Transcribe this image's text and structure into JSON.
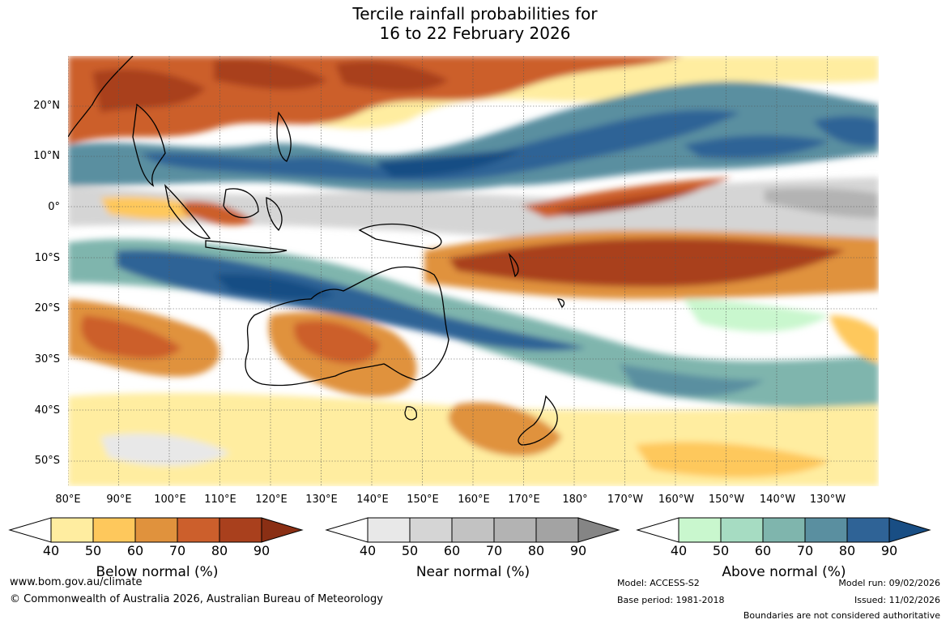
{
  "title": {
    "line1": "Tercile rainfall probabilities for",
    "line2": "16 to 22 February 2026"
  },
  "map": {
    "lat_labels": [
      "20°N",
      "10°N",
      "0°",
      "10°S",
      "20°S",
      "30°S",
      "40°S",
      "50°S"
    ],
    "lon_labels": [
      "80°E",
      "90°E",
      "100°E",
      "110°E",
      "120°E",
      "130°E",
      "140°E",
      "150°E",
      "160°E",
      "170°E",
      "180°",
      "170°W",
      "160°W",
      "150°W",
      "140°W",
      "130°W"
    ],
    "grid": true
  },
  "colorbars": [
    {
      "name": "Below normal (%)",
      "ticks": [
        "40",
        "50",
        "60",
        "70",
        "80",
        "90"
      ],
      "colors": [
        "#ffeda0",
        "#fec85c",
        "#e0923d",
        "#cc5f2c",
        "#a9401d",
        "#8a2f14"
      ]
    },
    {
      "name": "Near normal (%)",
      "ticks": [
        "40",
        "50",
        "60",
        "70",
        "80",
        "90"
      ],
      "colors": [
        "#e8e8e8",
        "#d5d5d5",
        "#c2c2c2",
        "#b3b3b3",
        "#a3a3a3",
        "#858585"
      ]
    },
    {
      "name": "Above normal (%)",
      "ticks": [
        "40",
        "50",
        "60",
        "70",
        "80",
        "90"
      ],
      "colors": [
        "#c9f7ce",
        "#a6dcc2",
        "#7fb5ad",
        "#5a8fa0",
        "#2f6396",
        "#194e84"
      ]
    }
  ],
  "footer": {
    "website": "www.bom.gov.au/climate",
    "copyright": "© Commonwealth of Australia 2026, Australian Bureau of Meteorology",
    "model": "Model: ACCESS-S2",
    "base_period": "Base period: 1981-2018",
    "model_run": "Model run: 09/02/2026",
    "issued": "Issued: 11/02/2026",
    "disclaimer": "Boundaries are not considered authoritative"
  }
}
